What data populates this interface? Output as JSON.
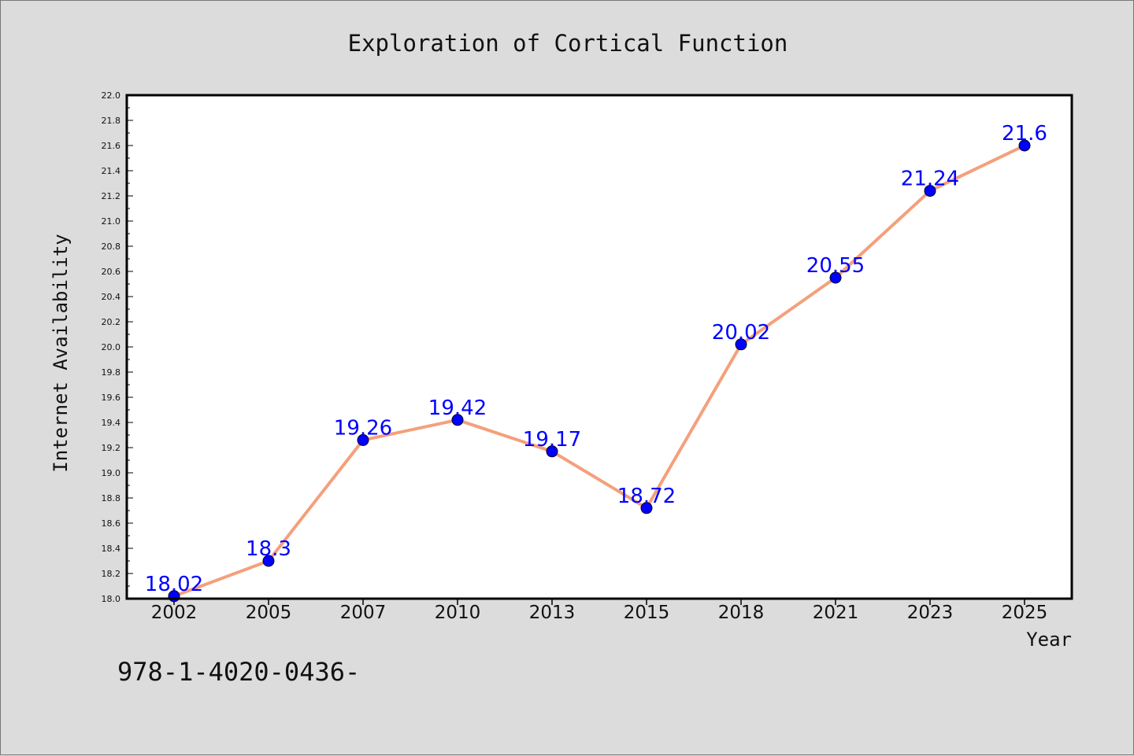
{
  "chart_data": {
    "type": "line",
    "title": "Exploration of Cortical Function",
    "xlabel": "Year",
    "ylabel": "Internet Availability",
    "categories": [
      "2002",
      "2005",
      "2007",
      "2010",
      "2013",
      "2015",
      "2018",
      "2021",
      "2023",
      "2025"
    ],
    "series": [
      {
        "values": [
          18.02,
          18.3,
          19.26,
          19.42,
          19.17,
          18.72,
          20.02,
          20.55,
          21.24,
          21.6
        ],
        "labels": [
          "18.02",
          "18.3",
          "19.26",
          "19.42",
          "19.17",
          "18.72",
          "20.02",
          "20.55",
          "21.24",
          "21.6"
        ]
      }
    ],
    "ylim": [
      18.0,
      22.0
    ],
    "yticks": [
      "18.0",
      "18.2",
      "18.4",
      "18.6",
      "18.8",
      "19.0",
      "19.2",
      "19.4",
      "19.6",
      "19.8",
      "20.0",
      "20.2",
      "20.4",
      "20.6",
      "20.8",
      "21.0",
      "21.2",
      "21.4",
      "21.6",
      "21.8",
      "22.0"
    ],
    "grid": false,
    "legend": "none",
    "colors": {
      "line": "#f4a07c",
      "marker": "#0000ff",
      "label": "#0000ff",
      "background": "#dcdcdc",
      "plot_background": "#ffffff"
    }
  },
  "footnote": "978-1-4020-0436-"
}
